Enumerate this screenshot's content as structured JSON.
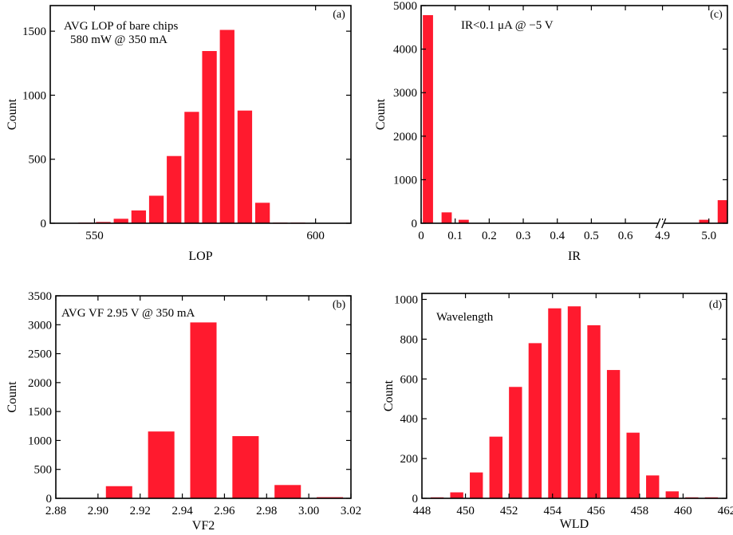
{
  "bar_color": "#ff1a2e",
  "chart_data": [
    {
      "id": "a",
      "type": "bar",
      "panel_label": "(a)",
      "title": "",
      "annotation": [
        "AVG LOP of bare chips",
        "580 mW @ 350 mA"
      ],
      "xlabel": "LOP",
      "ylabel": "Count",
      "xlim": [
        540,
        608
      ],
      "ylim": [
        0,
        1700
      ],
      "xticks": [
        550,
        600
      ],
      "yticks": [
        0,
        500,
        1000,
        1500
      ],
      "bar_width": 3.3,
      "x": [
        548,
        552,
        556,
        560,
        564,
        568,
        572,
        576,
        580,
        584,
        588,
        592,
        596
      ],
      "values": [
        5,
        10,
        35,
        100,
        215,
        525,
        870,
        1345,
        1510,
        880,
        160,
        5,
        5
      ],
      "grid": false
    },
    {
      "id": "c",
      "type": "bar",
      "panel_label": "(c)",
      "title": "",
      "annotation": [
        "IR<0.1 μA @ −5 V"
      ],
      "xlabel": "IR",
      "ylabel": "Count",
      "x_axis_break": true,
      "xlim_segments": [
        [
          0,
          0.7
        ],
        [
          4.9,
          5.04
        ]
      ],
      "ylim": [
        0,
        5000
      ],
      "xticks": [
        "0",
        "0.1",
        "0.2",
        "0.3",
        "0.4",
        "0.5",
        "0.6",
        "4.9",
        "5.0"
      ],
      "yticks": [
        0,
        1000,
        2000,
        3000,
        4000,
        5000
      ],
      "bar_width": 0.03,
      "x": [
        0.02,
        0.075,
        0.125,
        0.25,
        0.45,
        4.99,
        5.03
      ],
      "values": [
        4780,
        250,
        80,
        10,
        10,
        80,
        530
      ],
      "grid": false
    },
    {
      "id": "b",
      "type": "bar",
      "panel_label": "(b)",
      "title": "",
      "annotation": [
        "AVG VF 2.95 V @ 350 mA"
      ],
      "xlabel": "VF2",
      "ylabel": "Count",
      "xlim": [
        2.88,
        3.02
      ],
      "ylim": [
        0,
        3500
      ],
      "xticks": [
        "2.88",
        "2.90",
        "2.92",
        "2.94",
        "2.96",
        "2.98",
        "3.00",
        "3.02"
      ],
      "yticks": [
        0,
        500,
        1000,
        1500,
        2000,
        2500,
        3000,
        3500
      ],
      "bar_width": 0.0125,
      "x": [
        2.91,
        2.93,
        2.95,
        2.97,
        2.99,
        3.01
      ],
      "values": [
        210,
        1155,
        3040,
        1075,
        230,
        20
      ],
      "grid": false
    },
    {
      "id": "d",
      "type": "bar",
      "panel_label": "(d)",
      "title": "",
      "annotation": [
        "Wavelength"
      ],
      "xlabel": "WLD",
      "ylabel": "Count",
      "xlim": [
        448,
        462
      ],
      "ylim": [
        0,
        1030
      ],
      "xticks": [
        448,
        450,
        452,
        454,
        456,
        458,
        460,
        462
      ],
      "yticks": [
        0,
        200,
        400,
        600,
        800,
        1000
      ],
      "bar_width": 0.6,
      "x": [
        448.7,
        449.6,
        450.5,
        451.4,
        452.3,
        453.2,
        454.1,
        455.0,
        455.9,
        456.8,
        457.7,
        458.6,
        459.5,
        460.4,
        461.3
      ],
      "values": [
        5,
        30,
        130,
        310,
        560,
        780,
        955,
        965,
        870,
        645,
        330,
        115,
        35,
        5,
        5
      ],
      "grid": false
    }
  ]
}
